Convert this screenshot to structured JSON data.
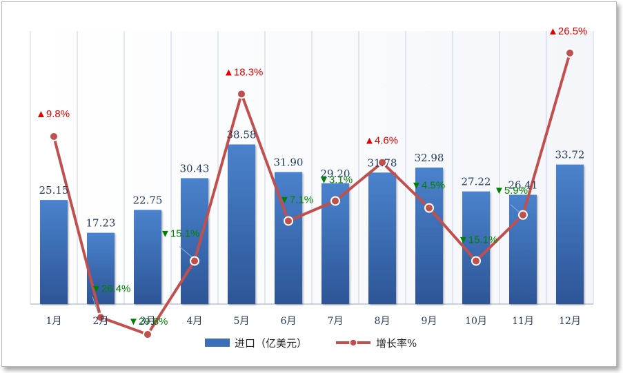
{
  "chart_data": {
    "type": "bar",
    "categories": [
      "1月",
      "2月",
      "3月",
      "4月",
      "5月",
      "6月",
      "7月",
      "8月",
      "9月",
      "10月",
      "11月",
      "12月"
    ],
    "series": [
      {
        "name": "进口（亿美元）",
        "type": "bar",
        "values": [
          25.15,
          17.23,
          22.75,
          30.43,
          38.58,
          31.9,
          29.2,
          31.78,
          32.98,
          27.22,
          26.41,
          33.72
        ],
        "labels": [
          "25.15",
          "17.23",
          "22.75",
          "30.43",
          "38.58",
          "31.90",
          "29.20",
          "31.78",
          "32.98",
          "27.22",
          "26.41",
          "33.72"
        ],
        "color": "#3c6fb8"
      },
      {
        "name": "增长率%",
        "type": "line",
        "values": [
          9.8,
          -26.4,
          -29.8,
          -15.1,
          18.3,
          -7.1,
          -3.1,
          4.6,
          -4.5,
          -15.1,
          -5.9,
          26.5
        ],
        "labels": [
          "▲9.8%",
          "▼26.4%",
          "▼29.8%",
          "▼15.1%",
          "▲18.3%",
          "▼7.1%",
          "▼3.1%",
          "▲4.6%",
          "▼4.5%",
          "▼15.1%",
          "▼5.9%",
          "▲26.5%"
        ],
        "color": "#c0504d"
      }
    ],
    "legend": {
      "position": "bottom"
    },
    "colors": {
      "up": "#e00000",
      "down": "#008000",
      "grid": "#c8d3e6"
    }
  }
}
